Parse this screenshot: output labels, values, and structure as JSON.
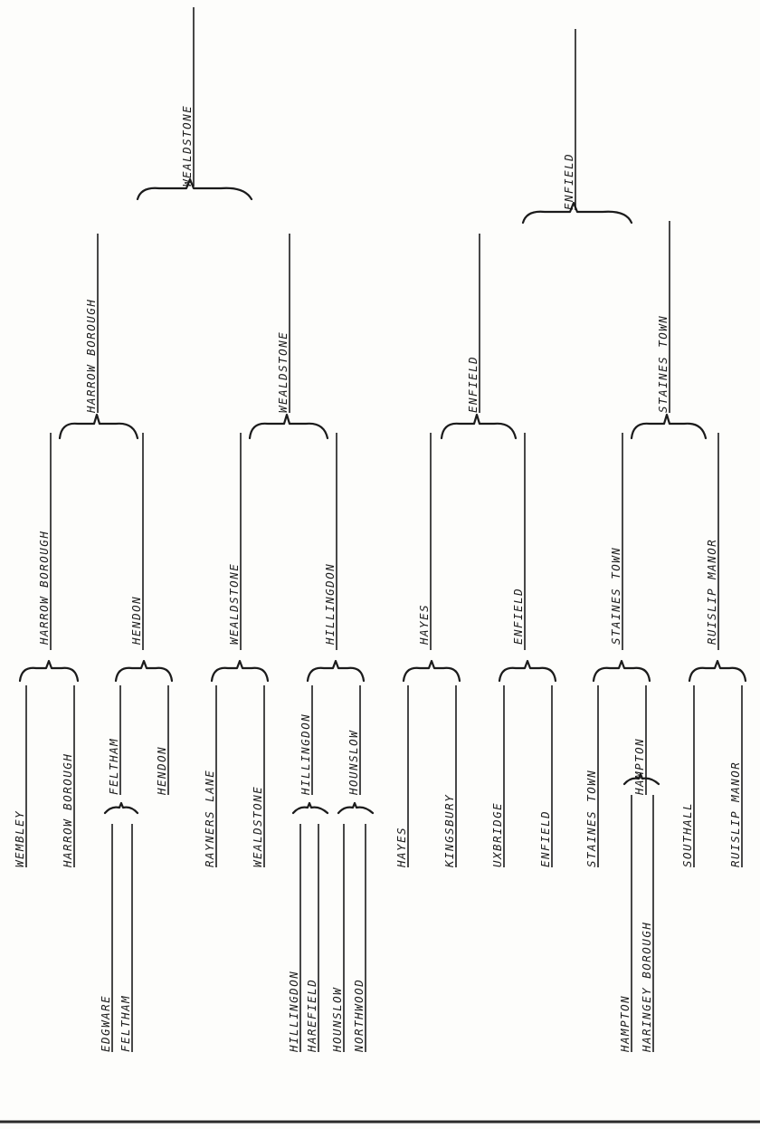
{
  "preliminary": {
    "p1": {
      "team_a": "EDGWARE",
      "team_b": "FELTHAM"
    },
    "p2": {
      "team_a": "HILLINGDON",
      "team_b": "HAREFIELD"
    },
    "p3": {
      "team_a": "HOUNSLOW",
      "team_b": "NORTHWOOD"
    },
    "p4": {
      "team_a": "HAMPTON",
      "team_b": "HARINGEY BOROUGH"
    }
  },
  "round1": {
    "t1": "WEMBLEY",
    "t2": "HARROW BOROUGH",
    "t3": "FELTHAM",
    "t4": "HENDON",
    "t5": "RAYNERS LANE",
    "t6": "WEALDSTONE",
    "t7": "HILLINGDON",
    "t8": "HOUNSLOW",
    "t9": "HAYES",
    "t10": "KINGSBURY",
    "t11": "UXBRIDGE",
    "t12": "ENFIELD",
    "t13": "STAINES TOWN",
    "t14": "HAMPTON",
    "t15": "SOUTHALL",
    "t16": "RUISLIP MANOR"
  },
  "quarter_finals": {
    "w1": "HARROW BOROUGH",
    "w2": "HENDON",
    "w3": "WEALDSTONE",
    "w4": "HILLINGDON",
    "w5": "HAYES",
    "w6": "ENFIELD",
    "w7": "STAINES TOWN",
    "w8": "RUISLIP MANOR"
  },
  "semi_finals": {
    "w1": "HARROW BOROUGH",
    "w2": "WEALDSTONE",
    "w3": "ENFIELD",
    "w4": "STAINES TOWN"
  },
  "final": {
    "w1": "WEALDSTONE",
    "w2": "ENFIELD"
  }
}
